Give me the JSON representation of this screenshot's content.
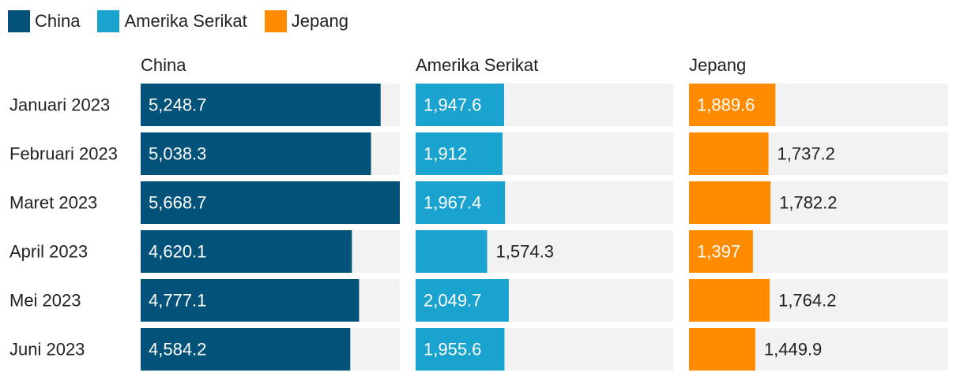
{
  "chart_data": {
    "type": "bar",
    "layout": "small-multiples-horizontal",
    "categories": [
      "Januari 2023",
      "Februari 2023",
      "Maret 2023",
      "April 2023",
      "Mei 2023",
      "Juni 2023"
    ],
    "max_value": 5668.7,
    "series": [
      {
        "name": "China",
        "color": "#02527a",
        "values": [
          5248.7,
          5038.3,
          5668.7,
          4620.1,
          4777.1,
          4584.2
        ],
        "labels": [
          "5,248.7",
          "5,038.3",
          "5,668.7",
          "4,620.1",
          "4,777.1",
          "4,584.2"
        ]
      },
      {
        "name": "Amerika Serikat",
        "color": "#1ba3d0",
        "values": [
          1947.6,
          1912,
          1967.4,
          1574.3,
          2049.7,
          1955.6
        ],
        "labels": [
          "1,947.6",
          "1,912",
          "1,967.4",
          "1,574.3",
          "2,049.7",
          "1,955.6"
        ]
      },
      {
        "name": "Jepang",
        "color": "#ff8c00",
        "values": [
          1889.6,
          1737.2,
          1782.2,
          1397,
          1764.2,
          1449.9
        ],
        "labels": [
          "1,889.6",
          "1,737.2",
          "1,782.2",
          "1,397",
          "1,764.2",
          "1,449.9"
        ]
      }
    ],
    "legend": {
      "position": "top-left",
      "items": [
        "China",
        "Amerika Serikat",
        "Jepang"
      ]
    },
    "track_color": "#f2f2f2"
  }
}
